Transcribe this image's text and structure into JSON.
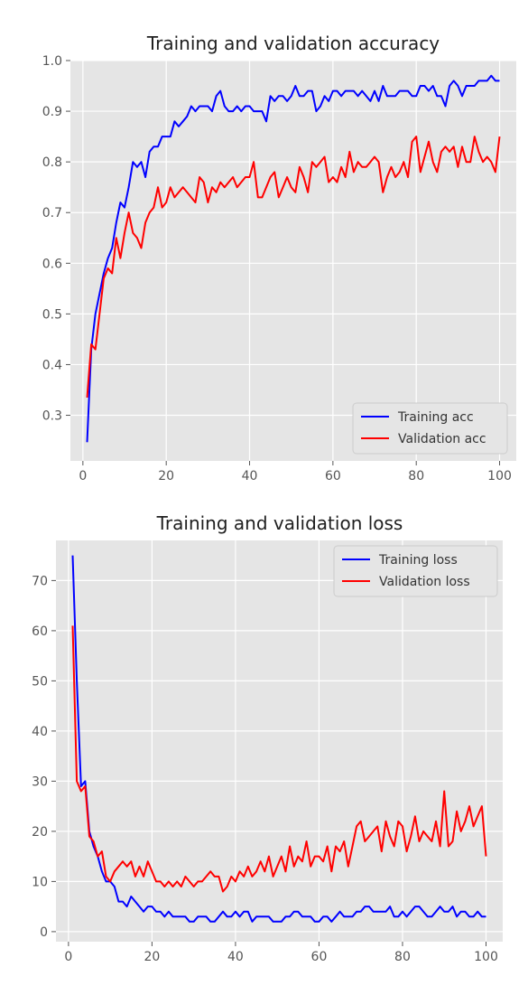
{
  "chart_data": [
    {
      "type": "line",
      "title": "Training and validation accuracy",
      "xlabel": "",
      "ylabel": "",
      "xlim": [
        -3,
        104
      ],
      "ylim": [
        0.21,
        1.0
      ],
      "x_ticks": [
        0,
        20,
        40,
        60,
        80,
        100
      ],
      "y_ticks": [
        0.3,
        0.4,
        0.5,
        0.6,
        0.7,
        0.8,
        0.9,
        1.0
      ],
      "grid": true,
      "legend_position": "lower-right",
      "series": [
        {
          "name": "Training acc",
          "color": "#0000ff",
          "x": [
            1,
            2,
            3,
            4,
            5,
            6,
            7,
            8,
            9,
            10,
            11,
            12,
            13,
            14,
            15,
            16,
            17,
            18,
            19,
            20,
            21,
            22,
            23,
            24,
            25,
            26,
            27,
            28,
            29,
            30,
            31,
            32,
            33,
            34,
            35,
            36,
            37,
            38,
            39,
            40,
            41,
            42,
            43,
            44,
            45,
            46,
            47,
            48,
            49,
            50,
            51,
            52,
            53,
            54,
            55,
            56,
            57,
            58,
            59,
            60,
            61,
            62,
            63,
            64,
            65,
            66,
            67,
            68,
            69,
            70,
            71,
            72,
            73,
            74,
            75,
            76,
            77,
            78,
            79,
            80,
            81,
            82,
            83,
            84,
            85,
            86,
            87,
            88,
            89,
            90,
            91,
            92,
            93,
            94,
            95,
            96,
            97,
            98,
            99,
            100
          ],
          "values": [
            0.247,
            0.43,
            0.5,
            0.54,
            0.58,
            0.61,
            0.63,
            0.68,
            0.72,
            0.71,
            0.75,
            0.8,
            0.79,
            0.8,
            0.77,
            0.82,
            0.83,
            0.83,
            0.85,
            0.85,
            0.85,
            0.88,
            0.87,
            0.88,
            0.89,
            0.91,
            0.9,
            0.91,
            0.91,
            0.91,
            0.9,
            0.93,
            0.94,
            0.91,
            0.9,
            0.9,
            0.91,
            0.9,
            0.91,
            0.91,
            0.9,
            0.9,
            0.9,
            0.88,
            0.93,
            0.92,
            0.93,
            0.93,
            0.92,
            0.93,
            0.95,
            0.93,
            0.93,
            0.94,
            0.94,
            0.9,
            0.91,
            0.93,
            0.92,
            0.94,
            0.94,
            0.93,
            0.94,
            0.94,
            0.94,
            0.93,
            0.94,
            0.93,
            0.92,
            0.94,
            0.92,
            0.95,
            0.93,
            0.93,
            0.93,
            0.94,
            0.94,
            0.94,
            0.93,
            0.93,
            0.95,
            0.95,
            0.94,
            0.95,
            0.93,
            0.93,
            0.91,
            0.95,
            0.96,
            0.95,
            0.93,
            0.95,
            0.95,
            0.95,
            0.96,
            0.96,
            0.96,
            0.97,
            0.96,
            0.96
          ]
        },
        {
          "name": "Validation acc",
          "color": "#ff0000",
          "x": [
            1,
            2,
            3,
            4,
            5,
            6,
            7,
            8,
            9,
            10,
            11,
            12,
            13,
            14,
            15,
            16,
            17,
            18,
            19,
            20,
            21,
            22,
            23,
            24,
            25,
            26,
            27,
            28,
            29,
            30,
            31,
            32,
            33,
            34,
            35,
            36,
            37,
            38,
            39,
            40,
            41,
            42,
            43,
            44,
            45,
            46,
            47,
            48,
            49,
            50,
            51,
            52,
            53,
            54,
            55,
            56,
            57,
            58,
            59,
            60,
            61,
            62,
            63,
            64,
            65,
            66,
            67,
            68,
            69,
            70,
            71,
            72,
            73,
            74,
            75,
            76,
            77,
            78,
            79,
            80,
            81,
            82,
            83,
            84,
            85,
            86,
            87,
            88,
            89,
            90,
            91,
            92,
            93,
            94,
            95,
            96,
            97,
            98,
            99,
            100
          ],
          "values": [
            0.335,
            0.44,
            0.43,
            0.5,
            0.57,
            0.59,
            0.58,
            0.65,
            0.61,
            0.66,
            0.7,
            0.66,
            0.65,
            0.63,
            0.68,
            0.7,
            0.71,
            0.75,
            0.71,
            0.72,
            0.75,
            0.73,
            0.74,
            0.75,
            0.74,
            0.73,
            0.72,
            0.77,
            0.76,
            0.72,
            0.75,
            0.74,
            0.76,
            0.75,
            0.76,
            0.77,
            0.75,
            0.76,
            0.77,
            0.77,
            0.8,
            0.73,
            0.73,
            0.75,
            0.77,
            0.78,
            0.73,
            0.75,
            0.77,
            0.75,
            0.74,
            0.79,
            0.77,
            0.74,
            0.8,
            0.79,
            0.8,
            0.81,
            0.76,
            0.77,
            0.76,
            0.79,
            0.77,
            0.82,
            0.78,
            0.8,
            0.79,
            0.79,
            0.8,
            0.81,
            0.8,
            0.74,
            0.77,
            0.79,
            0.77,
            0.78,
            0.8,
            0.77,
            0.84,
            0.85,
            0.78,
            0.81,
            0.84,
            0.8,
            0.78,
            0.82,
            0.83,
            0.82,
            0.83,
            0.79,
            0.83,
            0.8,
            0.8,
            0.85,
            0.82,
            0.8,
            0.81,
            0.8,
            0.78,
            0.85
          ]
        }
      ]
    },
    {
      "type": "line",
      "title": "Training and validation loss",
      "xlabel": "",
      "ylabel": "",
      "xlim": [
        -3,
        104
      ],
      "ylim": [
        -2,
        78
      ],
      "x_ticks": [
        0,
        20,
        40,
        60,
        80,
        100
      ],
      "y_ticks": [
        0,
        10,
        20,
        30,
        40,
        50,
        60,
        70
      ],
      "grid": true,
      "legend_position": "upper-right",
      "series": [
        {
          "name": "Training loss",
          "color": "#0000ff",
          "x": [
            1,
            2,
            3,
            4,
            5,
            6,
            7,
            8,
            9,
            10,
            11,
            12,
            13,
            14,
            15,
            16,
            17,
            18,
            19,
            20,
            21,
            22,
            23,
            24,
            25,
            26,
            27,
            28,
            29,
            30,
            31,
            32,
            33,
            34,
            35,
            36,
            37,
            38,
            39,
            40,
            41,
            42,
            43,
            44,
            45,
            46,
            47,
            48,
            49,
            50,
            51,
            52,
            53,
            54,
            55,
            56,
            57,
            58,
            59,
            60,
            61,
            62,
            63,
            64,
            65,
            66,
            67,
            68,
            69,
            70,
            71,
            72,
            73,
            74,
            75,
            76,
            77,
            78,
            79,
            80,
            81,
            82,
            83,
            84,
            85,
            86,
            87,
            88,
            89,
            90,
            91,
            92,
            93,
            94,
            95,
            96,
            97,
            98,
            99,
            100
          ],
          "values": [
            75,
            50,
            29,
            30,
            20,
            17,
            15,
            12,
            10,
            10,
            9,
            6,
            6,
            5,
            7,
            6,
            5,
            4,
            5,
            5,
            4,
            4,
            3,
            4,
            3,
            3,
            3,
            3,
            2,
            2,
            3,
            3,
            3,
            2,
            2,
            3,
            4,
            3,
            3,
            4,
            3,
            4,
            4,
            2,
            3,
            3,
            3,
            3,
            2,
            2,
            2,
            3,
            3,
            4,
            4,
            3,
            3,
            3,
            2,
            2,
            3,
            3,
            2,
            3,
            4,
            3,
            3,
            3,
            4,
            4,
            5,
            5,
            4,
            4,
            4,
            4,
            5,
            3,
            3,
            4,
            3,
            4,
            5,
            5,
            4,
            3,
            3,
            4,
            5,
            4,
            4,
            5,
            3,
            4,
            4,
            3,
            3,
            4,
            3,
            3
          ]
        },
        {
          "name": "Validation loss",
          "color": "#ff0000",
          "x": [
            1,
            2,
            3,
            4,
            5,
            6,
            7,
            8,
            9,
            10,
            11,
            12,
            13,
            14,
            15,
            16,
            17,
            18,
            19,
            20,
            21,
            22,
            23,
            24,
            25,
            26,
            27,
            28,
            29,
            30,
            31,
            32,
            33,
            34,
            35,
            36,
            37,
            38,
            39,
            40,
            41,
            42,
            43,
            44,
            45,
            46,
            47,
            48,
            49,
            50,
            51,
            52,
            53,
            54,
            55,
            56,
            57,
            58,
            59,
            60,
            61,
            62,
            63,
            64,
            65,
            66,
            67,
            68,
            69,
            70,
            71,
            72,
            73,
            74,
            75,
            76,
            77,
            78,
            79,
            80,
            81,
            82,
            83,
            84,
            85,
            86,
            87,
            88,
            89,
            90,
            91,
            92,
            93,
            94,
            95,
            96,
            97,
            98,
            99,
            100
          ],
          "values": [
            61,
            30,
            28,
            29,
            19,
            18,
            15,
            16,
            11,
            10,
            12,
            13,
            14,
            13,
            14,
            11,
            13,
            11,
            14,
            12,
            10,
            10,
            9,
            10,
            9,
            10,
            9,
            11,
            10,
            9,
            10,
            10,
            11,
            12,
            11,
            11,
            8,
            9,
            11,
            10,
            12,
            11,
            13,
            11,
            12,
            14,
            12,
            15,
            11,
            13,
            15,
            12,
            17,
            13,
            15,
            14,
            18,
            13,
            15,
            15,
            14,
            17,
            12,
            17,
            16,
            18,
            13,
            17,
            21,
            22,
            18,
            19,
            20,
            21,
            16,
            22,
            19,
            17,
            22,
            21,
            16,
            19,
            23,
            18,
            20,
            19,
            18,
            22,
            17,
            28,
            17,
            18,
            24,
            20,
            22,
            25,
            21,
            23,
            25,
            15
          ]
        }
      ]
    }
  ]
}
